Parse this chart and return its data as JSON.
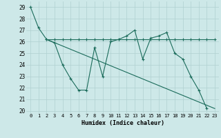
{
  "title": "",
  "xlabel": "Humidex (Indice chaleur)",
  "bg_color": "#cde8e8",
  "grid_color": "#b0d0d0",
  "line_color": "#1a6b5a",
  "ylim": [
    19.8,
    29.5
  ],
  "xlim": [
    -0.5,
    23.5
  ],
  "yticks": [
    20,
    21,
    22,
    23,
    24,
    25,
    26,
    27,
    28,
    29
  ],
  "xticks": [
    0,
    1,
    2,
    3,
    4,
    5,
    6,
    7,
    8,
    9,
    10,
    11,
    12,
    13,
    14,
    15,
    16,
    17,
    18,
    19,
    20,
    21,
    22,
    23
  ],
  "line1_x": [
    0,
    1,
    2,
    3,
    4,
    5,
    6,
    7,
    8,
    9,
    10,
    11,
    12,
    13,
    14,
    15,
    16,
    17,
    18,
    19,
    20,
    21,
    22
  ],
  "line1_y": [
    29.0,
    27.2,
    26.2,
    25.9,
    24.0,
    22.8,
    21.8,
    21.8,
    25.5,
    23.0,
    26.0,
    26.2,
    26.5,
    27.0,
    24.5,
    26.3,
    26.5,
    26.8,
    25.0,
    24.5,
    23.0,
    21.8,
    20.2
  ],
  "line2_x": [
    2,
    3,
    4,
    5,
    6,
    7,
    8,
    9,
    10,
    11,
    12,
    13,
    14,
    15,
    16,
    17,
    18,
    19,
    20,
    21,
    22,
    23
  ],
  "line2_y": [
    26.2,
    26.2,
    26.2,
    26.2,
    26.2,
    26.2,
    26.2,
    26.2,
    26.2,
    26.2,
    26.2,
    26.2,
    26.2,
    26.2,
    26.2,
    26.2,
    26.2,
    26.2,
    26.2,
    26.2,
    26.2,
    26.2
  ],
  "line3_x": [
    2,
    23
  ],
  "line3_y": [
    26.2,
    20.2
  ]
}
